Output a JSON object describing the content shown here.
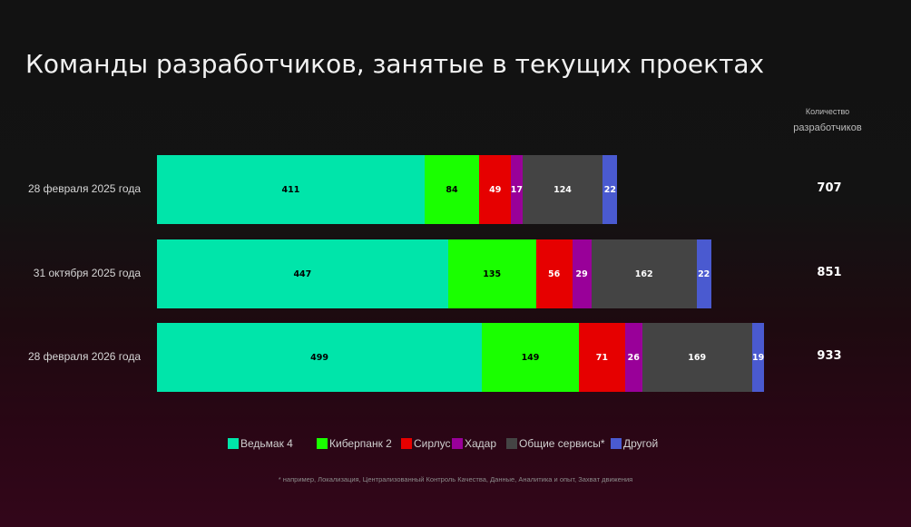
{
  "title": "Команды разработчиков, занятые в текущих проектах",
  "count_header": {
    "line1": "Количество",
    "line2": "разработчиков"
  },
  "footnote": "* например, Локализация, Централизованный Контроль Качества, Данные, Аналитика и опыт, Захват движения",
  "chart_data": {
    "type": "bar",
    "orientation": "horizontal",
    "stacked": true,
    "categories": [
      "28 февраля 2025 года",
      "31 октября 2025 года",
      "28 февраля 2026 года"
    ],
    "series": [
      {
        "name": "Ведьмак 4",
        "color": "#00e5aa",
        "text_color": "#000000",
        "values": [
          411,
          447,
          499
        ]
      },
      {
        "name": "Киберпанк 2",
        "color": "#1aff00",
        "text_color": "#000000",
        "values": [
          84,
          135,
          149
        ]
      },
      {
        "name": "Сирлус",
        "color": "#e60000",
        "text_color": "#ffffff",
        "values": [
          49,
          56,
          71
        ]
      },
      {
        "name": "Хадар",
        "color": "#990099",
        "text_color": "#ffffff",
        "values": [
          17,
          29,
          26
        ]
      },
      {
        "name": "Общие сервисы*",
        "color": "#444444",
        "text_color": "#ffffff",
        "values": [
          124,
          162,
          169
        ]
      },
      {
        "name": "Другой",
        "color": "#4a5ad0",
        "text_color": "#ffffff",
        "values": [
          22,
          22,
          19
        ]
      }
    ],
    "totals": [
      707,
      851,
      933
    ],
    "legend_position": "bottom",
    "grid": false
  }
}
